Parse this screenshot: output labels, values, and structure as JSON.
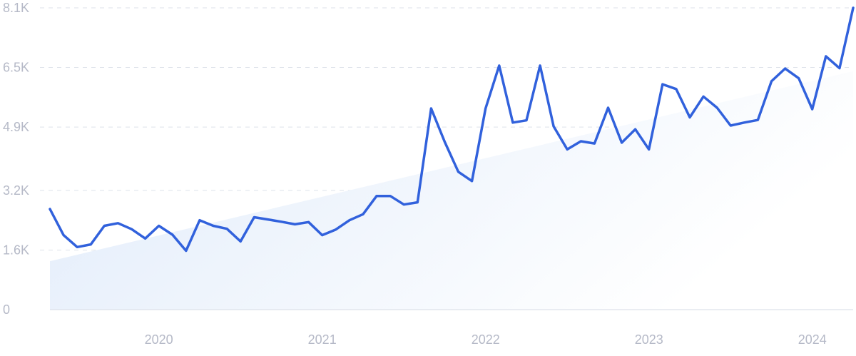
{
  "chart_data": {
    "type": "line",
    "title": "",
    "xlabel": "",
    "ylabel": "",
    "grid": true,
    "ylim": [
      0,
      8100
    ],
    "y_ticks": [
      {
        "value": 0,
        "label": "0"
      },
      {
        "value": 1600,
        "label": "1.6K"
      },
      {
        "value": 3200,
        "label": "3.2K"
      },
      {
        "value": 4900,
        "label": "4.9K"
      },
      {
        "value": 6500,
        "label": "6.5K"
      },
      {
        "value": 8100,
        "label": "8.1K"
      }
    ],
    "x_ticks": [
      {
        "value": "2020-01",
        "label": "2020"
      },
      {
        "value": "2021-01",
        "label": "2021"
      },
      {
        "value": "2022-01",
        "label": "2022"
      },
      {
        "value": "2023-01",
        "label": "2023"
      },
      {
        "value": "2024-01",
        "label": "2024"
      }
    ],
    "xlim": [
      "2019-05",
      "2024-04"
    ],
    "colors": {
      "line": "#3161dc",
      "trend_fill_start": "#e0ebfa",
      "trend_fill_end": "#ffffff"
    },
    "trend": {
      "x": [
        "2019-05",
        "2024-04"
      ],
      "y": [
        1300,
        6400
      ]
    },
    "series": [
      {
        "x": [
          "2019-05",
          "2019-06",
          "2019-07",
          "2019-08",
          "2019-09",
          "2019-10",
          "2019-11",
          "2019-12",
          "2020-01",
          "2020-02",
          "2020-03",
          "2020-04",
          "2020-05",
          "2020-06",
          "2020-07",
          "2020-08",
          "2020-09",
          "2020-10",
          "2020-11",
          "2020-12",
          "2021-01",
          "2021-02",
          "2021-03",
          "2021-04",
          "2021-05",
          "2021-06",
          "2021-07",
          "2021-08",
          "2021-09",
          "2021-10",
          "2021-11",
          "2021-12",
          "2022-01",
          "2022-02",
          "2022-03",
          "2022-04",
          "2022-05",
          "2022-06",
          "2022-07",
          "2022-08",
          "2022-09",
          "2022-10",
          "2022-11",
          "2022-12",
          "2023-01",
          "2023-02",
          "2023-03",
          "2023-04",
          "2023-05",
          "2023-06",
          "2023-07",
          "2023-08",
          "2023-09",
          "2023-10",
          "2023-11",
          "2023-12",
          "2024-01",
          "2024-02",
          "2024-03",
          "2024-04"
        ],
        "values": [
          2700,
          2000,
          1680,
          1750,
          2250,
          2320,
          2160,
          1910,
          2250,
          2010,
          1580,
          2400,
          2250,
          2170,
          1830,
          2480,
          2420,
          2360,
          2290,
          2350,
          2000,
          2150,
          2400,
          2560,
          3050,
          3050,
          2820,
          2880,
          5400,
          4500,
          3700,
          3450,
          5400,
          6550,
          5020,
          5080,
          6550,
          4920,
          4300,
          4520,
          4460,
          5420,
          4480,
          4840,
          4300,
          6050,
          5920,
          5160,
          5720,
          5420,
          4940,
          5020,
          5090,
          6130,
          6470,
          6210,
          5380,
          6800,
          6480,
          8100
        ]
      }
    ]
  }
}
